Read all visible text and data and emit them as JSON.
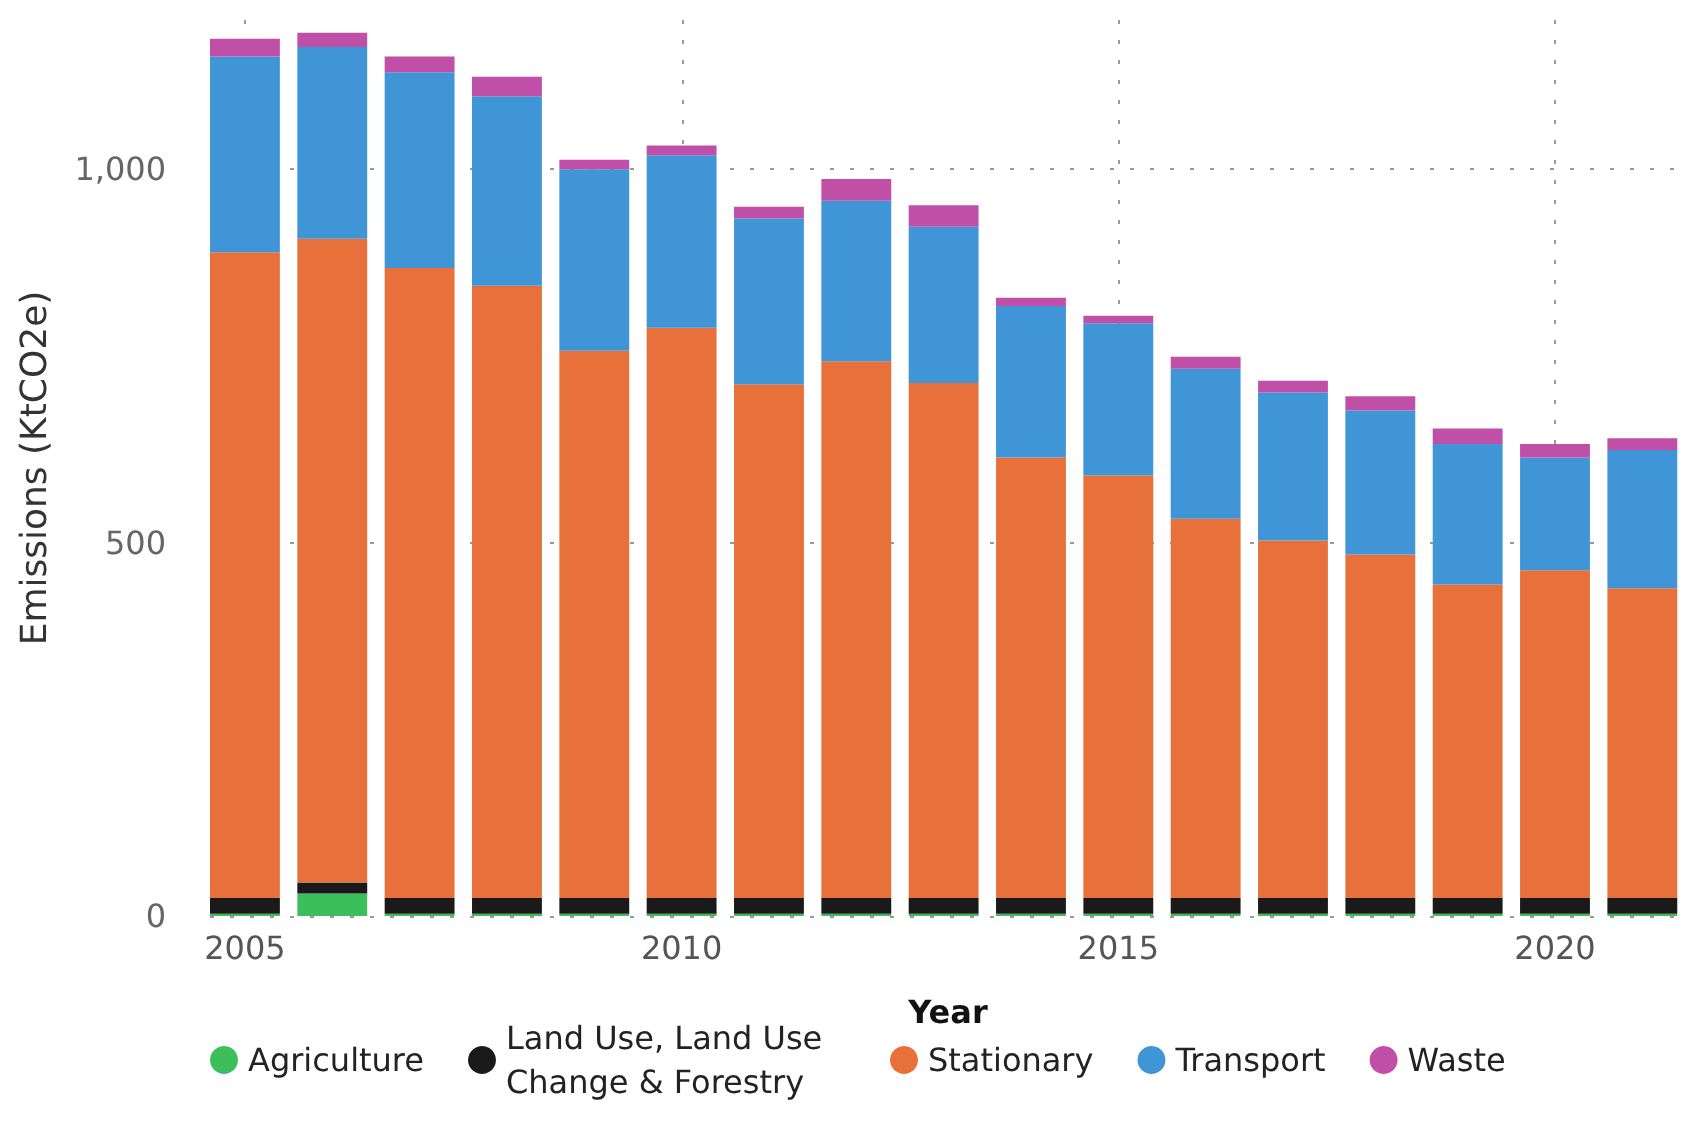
{
  "chart_data": {
    "type": "bar",
    "stacked": true,
    "xlabel": "Year",
    "ylabel": "Emissions (KtCO2e)",
    "x": [
      2005,
      2006,
      2007,
      2008,
      2009,
      2010,
      2011,
      2012,
      2013,
      2014,
      2015,
      2016,
      2017,
      2018,
      2019,
      2020,
      2021
    ],
    "series": [
      {
        "name": "Agriculture",
        "color": "#3cbf5a",
        "values": [
          3,
          30,
          3,
          3,
          3,
          3,
          3,
          3,
          3,
          3,
          3,
          3,
          3,
          3,
          3,
          3,
          3
        ]
      },
      {
        "name": "Land Use, Land Use Change & Forestry",
        "color": "#1a1a1a",
        "values": [
          21,
          15,
          21,
          21,
          21,
          21,
          21,
          21,
          21,
          21,
          21,
          21,
          21,
          21,
          21,
          21,
          21
        ]
      },
      {
        "name": "Stationary",
        "color": "#e8703a",
        "values": [
          865,
          862,
          844,
          820,
          733,
          764,
          688,
          719,
          690,
          590,
          566,
          508,
          479,
          460,
          420,
          439,
          415
        ]
      },
      {
        "name": "Transport",
        "color": "#3f95d6",
        "values": [
          262,
          257,
          262,
          254,
          243,
          231,
          222,
          215,
          209,
          203,
          204,
          201,
          198,
          193,
          188,
          151,
          185
        ]
      },
      {
        "name": "Waste",
        "color": "#c04fa8",
        "values": [
          24,
          19,
          21,
          26,
          13,
          13,
          16,
          29,
          29,
          11,
          10,
          16,
          16,
          19,
          21,
          18,
          16
        ]
      }
    ],
    "xlim": [
      2004.6,
      2021.5
    ],
    "xticks": [
      2005,
      2010,
      2015,
      2020
    ],
    "ylim": [
      0,
      1200
    ],
    "yticks": [
      0,
      500,
      {
        "value": 1000,
        "label": "1,000"
      }
    ],
    "grid": true,
    "legend": "bottom"
  }
}
